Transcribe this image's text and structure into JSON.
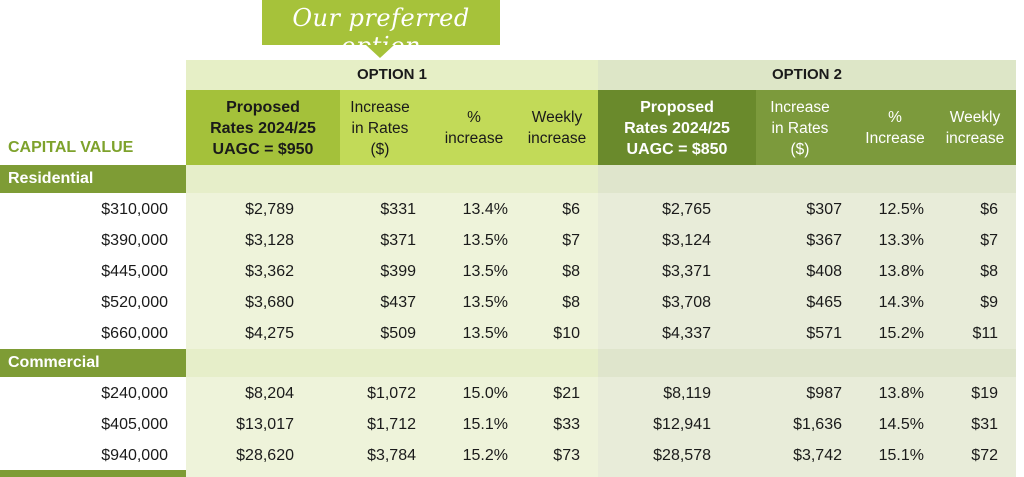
{
  "callout": {
    "text": "Our preferred option"
  },
  "option1": {
    "title": "OPTION 1",
    "headers": [
      "Proposed\nRates 2024/25\nUAGC = $950",
      "Increase\nin Rates\n($)",
      "%\nincrease",
      "Weekly\nincrease"
    ]
  },
  "option2": {
    "title": "OPTION 2",
    "headers": [
      "Proposed\nRates 2024/25\nUAGC = $850",
      "Increase\nin Rates\n($)",
      "%\nIncrease",
      "Weekly\nincrease"
    ]
  },
  "capital_value_label": "CAPITAL VALUE",
  "sections": [
    {
      "name": "Residential",
      "rows": [
        [
          "$310,000",
          "$2,789",
          "$331",
          "13.4%",
          "$6",
          "$2,765",
          "$307",
          "12.5%",
          "$6"
        ],
        [
          "$390,000",
          "$3,128",
          "$371",
          "13.5%",
          "$7",
          "$3,124",
          "$367",
          "13.3%",
          "$7"
        ],
        [
          "$445,000",
          "$3,362",
          "$399",
          "13.5%",
          "$8",
          "$3,371",
          "$408",
          "13.8%",
          "$8"
        ],
        [
          "$520,000",
          "$3,680",
          "$437",
          "13.5%",
          "$8",
          "$3,708",
          "$465",
          "14.3%",
          "$9"
        ],
        [
          "$660,000",
          "$4,275",
          "$509",
          "13.5%",
          "$10",
          "$4,337",
          "$571",
          "15.2%",
          "$11"
        ]
      ]
    },
    {
      "name": "Commercial",
      "rows": [
        [
          "$240,000",
          "$8,204",
          "$1,072",
          "15.0%",
          "$21",
          "$8,119",
          "$987",
          "13.8%",
          "$19"
        ],
        [
          "$405,000",
          "$13,017",
          "$1,712",
          "15.1%",
          "$33",
          "$12,941",
          "$1,636",
          "14.5%",
          "$31"
        ],
        [
          "$940,000",
          "$28,620",
          "$3,784",
          "15.2%",
          "$73",
          "$28,578",
          "$3,742",
          "15.1%",
          "$72"
        ]
      ]
    }
  ],
  "colors": {
    "callout": "#a6c23a",
    "section_bar": "#7e9c35",
    "option1_header": "#c2da58",
    "option1_proposed": "#a4c13a",
    "option2_header": "#7c9a3c",
    "option2_proposed": "#6a8a2c",
    "capital_value_label": "#7ea22c"
  }
}
